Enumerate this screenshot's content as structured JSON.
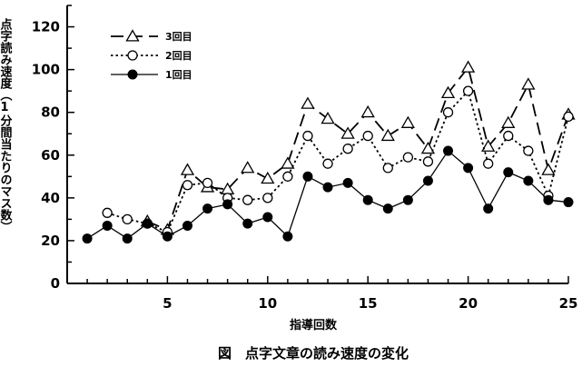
{
  "chart_data": {
    "type": "line",
    "caption": "図　点字文章の読み速度の変化",
    "xlabel": "指導回数",
    "ylabel": "点字読み速度（1分間当たりのマス数）",
    "xlim": [
      0,
      25
    ],
    "ylim": [
      0,
      130
    ],
    "xticks": [
      5,
      10,
      15,
      20,
      25
    ],
    "yticks": [
      0,
      20,
      40,
      60,
      80,
      100,
      120
    ],
    "grid": false,
    "legend_position": "top-left",
    "series": [
      {
        "name": "3回目",
        "marker": "open-triangle",
        "line": "dashed",
        "x": [
          4,
          5,
          6,
          7,
          8,
          9,
          10,
          11,
          12,
          13,
          14,
          15,
          16,
          17,
          18,
          19,
          20,
          21,
          22,
          23,
          24,
          25
        ],
        "y": [
          29,
          25,
          53,
          45,
          44,
          54,
          49,
          56,
          84,
          77,
          70,
          80,
          69,
          75,
          63,
          89,
          101,
          64,
          75,
          93,
          53,
          79
        ]
      },
      {
        "name": "2回目",
        "marker": "open-circle",
        "line": "dotted",
        "x": [
          2,
          3,
          4,
          5,
          6,
          7,
          8,
          9,
          10,
          11,
          12,
          13,
          14,
          15,
          16,
          17,
          18,
          19,
          20,
          21,
          22,
          23,
          24,
          25
        ],
        "y": [
          33,
          30,
          28,
          24,
          46,
          47,
          40,
          39,
          40,
          50,
          69,
          56,
          63,
          69,
          54,
          59,
          57,
          80,
          90,
          56,
          69,
          62,
          41,
          78
        ]
      },
      {
        "name": "1回目",
        "marker": "filled-circle",
        "line": "solid",
        "x": [
          1,
          2,
          3,
          4,
          5,
          6,
          7,
          8,
          9,
          10,
          11,
          12,
          13,
          14,
          15,
          16,
          17,
          18,
          19,
          20,
          21,
          22,
          23,
          24,
          25
        ],
        "y": [
          21,
          27,
          21,
          28,
          22,
          27,
          35,
          37,
          28,
          31,
          22,
          50,
          45,
          47,
          39,
          35,
          39,
          48,
          62,
          54,
          35,
          52,
          48,
          39,
          38
        ]
      }
    ]
  }
}
